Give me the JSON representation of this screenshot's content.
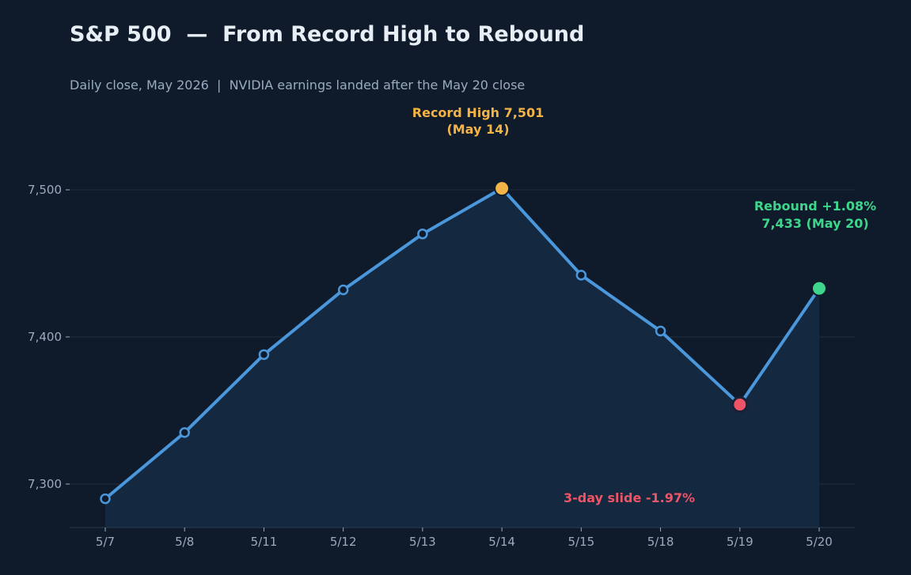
{
  "chart_data": {
    "type": "line",
    "title": "S&P 500  —  From Record High to Rebound",
    "subtitle": "Daily close, May 2026  |  NVIDIA earnings landed after the May 20 close",
    "xlabel": "",
    "ylabel": "",
    "categories": [
      "5/7",
      "5/8",
      "5/11",
      "5/12",
      "5/13",
      "5/14",
      "5/15",
      "5/18",
      "5/19",
      "5/20"
    ],
    "series": [
      {
        "values": [
          7290,
          7335,
          7388,
          7432,
          7470,
          7501,
          7442,
          7404,
          7354,
          7433
        ]
      }
    ],
    "ylim": [
      7270,
      7540
    ],
    "y_ticks": [
      7300,
      7400,
      7500
    ],
    "y_tick_labels": [
      "7,300",
      "7,400",
      "7,500"
    ],
    "grid": "horizontal",
    "highlights": {
      "high_index": 5,
      "low_index": 8,
      "last_index": 9
    },
    "annotations": {
      "high_line1": "Record High  7,501",
      "high_line2": "(May 14)",
      "rebound_line1": "Rebound  +1.08%",
      "rebound_line2": "7,433  (May 20)",
      "slide": "3-day slide  -1.97%"
    },
    "colors": {
      "background": "#0f1b2b",
      "line": "#4a97dc",
      "area": "#14283f",
      "high": "#f2b447",
      "low": "#ef5466",
      "rebound": "#3dd68c",
      "grid": "#1e2e42",
      "axis_text": "#9aabbf",
      "title": "#e8eef6"
    }
  }
}
